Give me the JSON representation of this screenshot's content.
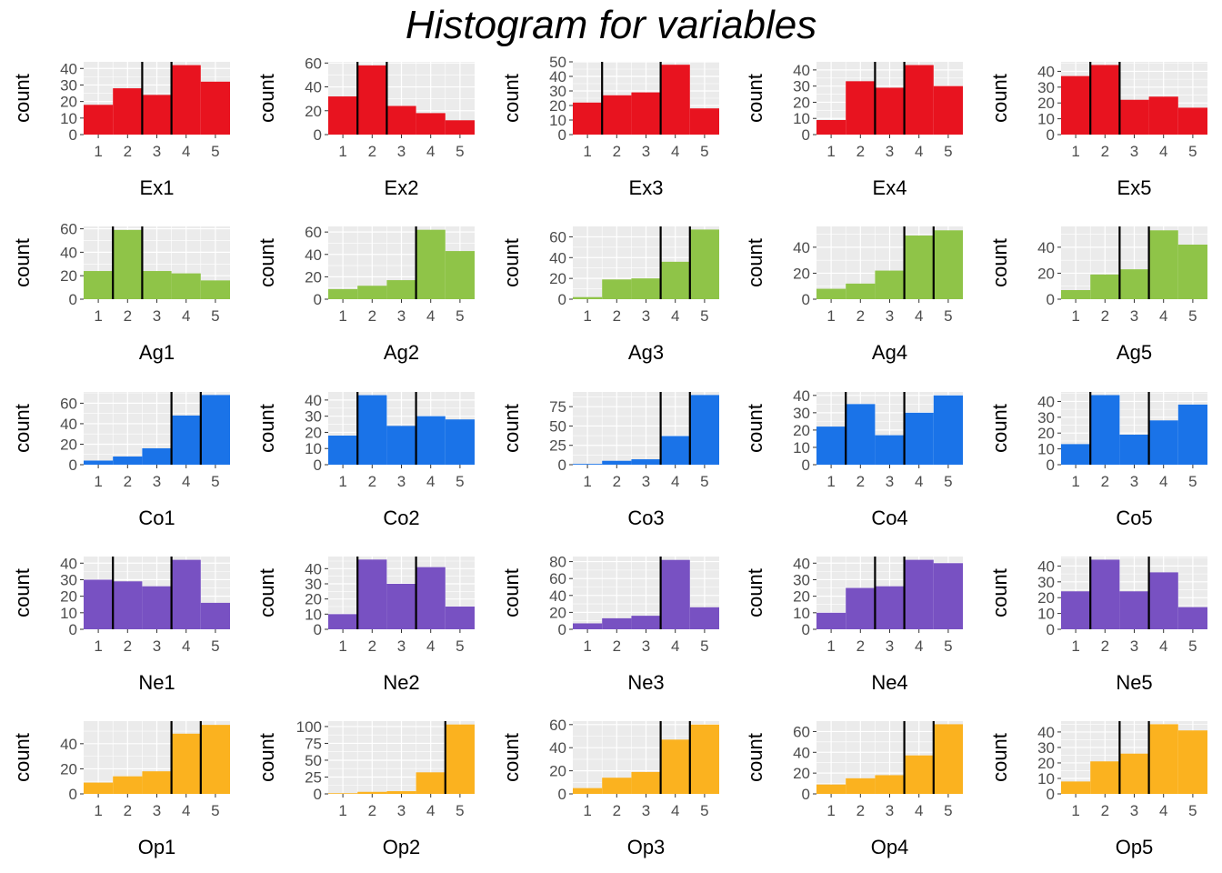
{
  "title": "Histogram for variables",
  "ylabel": "count",
  "colors": {
    "Ex": "#e8131f",
    "Ag": "#8fc448",
    "Co": "#1a73e8",
    "Ne": "#7851c2",
    "Op": "#fbb21f",
    "panel_bg": "#ebebeb",
    "grid": "#ffffff",
    "line": "#000000"
  },
  "chart_data": [
    {
      "type": "bar",
      "title": "",
      "xlabel": "Ex1",
      "ylabel": "count",
      "categories": [
        "1",
        "2",
        "3",
        "4",
        "5"
      ],
      "values": [
        18,
        28,
        24,
        42,
        32
      ],
      "ylim": [
        0,
        44
      ],
      "yticks": [
        0,
        10,
        20,
        30,
        40
      ],
      "vlines": [
        2.5,
        3.5
      ],
      "color": "#e8131f"
    },
    {
      "type": "bar",
      "title": "",
      "xlabel": "Ex2",
      "ylabel": "count",
      "categories": [
        "1",
        "2",
        "3",
        "4",
        "5"
      ],
      "values": [
        32,
        58,
        24,
        18,
        12
      ],
      "ylim": [
        0,
        61
      ],
      "yticks": [
        0,
        20,
        40,
        60
      ],
      "vlines": [
        1.5,
        2.5
      ],
      "color": "#e8131f"
    },
    {
      "type": "bar",
      "title": "",
      "xlabel": "Ex3",
      "ylabel": "count",
      "categories": [
        "1",
        "2",
        "3",
        "4",
        "5"
      ],
      "values": [
        22,
        27,
        29,
        48,
        18
      ],
      "ylim": [
        0,
        50
      ],
      "yticks": [
        0,
        10,
        20,
        30,
        40,
        50
      ],
      "vlines": [
        1.5,
        3.5
      ],
      "color": "#e8131f"
    },
    {
      "type": "bar",
      "title": "",
      "xlabel": "Ex4",
      "ylabel": "count",
      "categories": [
        "1",
        "2",
        "3",
        "4",
        "5"
      ],
      "values": [
        9,
        33,
        29,
        43,
        30
      ],
      "ylim": [
        0,
        45
      ],
      "yticks": [
        0,
        10,
        20,
        30,
        40
      ],
      "vlines": [
        2.5,
        3.5
      ],
      "color": "#e8131f"
    },
    {
      "type": "bar",
      "title": "",
      "xlabel": "Ex5",
      "ylabel": "count",
      "categories": [
        "1",
        "2",
        "3",
        "4",
        "5"
      ],
      "values": [
        37,
        44,
        22,
        24,
        17
      ],
      "ylim": [
        0,
        46
      ],
      "yticks": [
        0,
        10,
        20,
        30,
        40
      ],
      "vlines": [
        1.5,
        2.5
      ],
      "color": "#e8131f"
    },
    {
      "type": "bar",
      "title": "",
      "xlabel": "Ag1",
      "ylabel": "count",
      "categories": [
        "1",
        "2",
        "3",
        "4",
        "5"
      ],
      "values": [
        24,
        59,
        24,
        22,
        16
      ],
      "ylim": [
        0,
        62
      ],
      "yticks": [
        0,
        20,
        40,
        60
      ],
      "vlines": [
        1.5,
        2.5
      ],
      "color": "#8fc448"
    },
    {
      "type": "bar",
      "title": "",
      "xlabel": "Ag2",
      "ylabel": "count",
      "categories": [
        "1",
        "2",
        "3",
        "4",
        "5"
      ],
      "values": [
        9,
        12,
        17,
        62,
        43
      ],
      "ylim": [
        0,
        65
      ],
      "yticks": [
        0,
        20,
        40,
        60
      ],
      "vlines": [
        3.5
      ],
      "color": "#8fc448"
    },
    {
      "type": "bar",
      "title": "",
      "xlabel": "Ag3",
      "ylabel": "count",
      "categories": [
        "1",
        "2",
        "3",
        "4",
        "5"
      ],
      "values": [
        2,
        19,
        20,
        36,
        67
      ],
      "ylim": [
        0,
        70
      ],
      "yticks": [
        0,
        20,
        40,
        60
      ],
      "vlines": [
        3.5,
        4.5
      ],
      "color": "#8fc448"
    },
    {
      "type": "bar",
      "title": "",
      "xlabel": "Ag4",
      "ylabel": "count",
      "categories": [
        "1",
        "2",
        "3",
        "4",
        "5"
      ],
      "values": [
        8,
        12,
        22,
        49,
        53
      ],
      "ylim": [
        0,
        56
      ],
      "yticks": [
        0,
        20,
        40
      ],
      "vlines": [
        3.5,
        4.5
      ],
      "color": "#8fc448"
    },
    {
      "type": "bar",
      "title": "",
      "xlabel": "Ag5",
      "ylabel": "count",
      "categories": [
        "1",
        "2",
        "3",
        "4",
        "5"
      ],
      "values": [
        7,
        19,
        23,
        53,
        42
      ],
      "ylim": [
        0,
        56
      ],
      "yticks": [
        0,
        20,
        40
      ],
      "vlines": [
        2.5,
        3.5
      ],
      "color": "#8fc448"
    },
    {
      "type": "bar",
      "title": "",
      "xlabel": "Co1",
      "ylabel": "count",
      "categories": [
        "1",
        "2",
        "3",
        "4",
        "5"
      ],
      "values": [
        4,
        8,
        16,
        48,
        68
      ],
      "ylim": [
        0,
        71
      ],
      "yticks": [
        0,
        20,
        40,
        60
      ],
      "vlines": [
        3.5,
        4.5
      ],
      "color": "#1a73e8"
    },
    {
      "type": "bar",
      "title": "",
      "xlabel": "Co2",
      "ylabel": "count",
      "categories": [
        "1",
        "2",
        "3",
        "4",
        "5"
      ],
      "values": [
        18,
        43,
        24,
        30,
        28
      ],
      "ylim": [
        0,
        45
      ],
      "yticks": [
        0,
        10,
        20,
        30,
        40
      ],
      "vlines": [
        1.5,
        3.5
      ],
      "color": "#1a73e8"
    },
    {
      "type": "bar",
      "title": "",
      "xlabel": "Co3",
      "ylabel": "count",
      "categories": [
        "1",
        "2",
        "3",
        "4",
        "5"
      ],
      "values": [
        1,
        5,
        7,
        37,
        90
      ],
      "ylim": [
        0,
        94
      ],
      "yticks": [
        0,
        25,
        50,
        75
      ],
      "vlines": [
        3.5,
        4.5
      ],
      "color": "#1a73e8"
    },
    {
      "type": "bar",
      "title": "",
      "xlabel": "Co4",
      "ylabel": "count",
      "categories": [
        "1",
        "2",
        "3",
        "4",
        "5"
      ],
      "values": [
        22,
        35,
        17,
        30,
        40
      ],
      "ylim": [
        0,
        42
      ],
      "yticks": [
        0,
        10,
        20,
        30,
        40
      ],
      "vlines": [
        1.5,
        3.5
      ],
      "color": "#1a73e8"
    },
    {
      "type": "bar",
      "title": "",
      "xlabel": "Co5",
      "ylabel": "count",
      "categories": [
        "1",
        "2",
        "3",
        "4",
        "5"
      ],
      "values": [
        13,
        44,
        19,
        28,
        38
      ],
      "ylim": [
        0,
        46
      ],
      "yticks": [
        0,
        10,
        20,
        30,
        40
      ],
      "vlines": [
        1.5,
        3.5
      ],
      "color": "#1a73e8"
    },
    {
      "type": "bar",
      "title": "",
      "xlabel": "Ne1",
      "ylabel": "count",
      "categories": [
        "1",
        "2",
        "3",
        "4",
        "5"
      ],
      "values": [
        30,
        29,
        26,
        42,
        16
      ],
      "ylim": [
        0,
        44
      ],
      "yticks": [
        0,
        10,
        20,
        30,
        40
      ],
      "vlines": [
        1.5,
        3.5
      ],
      "color": "#7851c2"
    },
    {
      "type": "bar",
      "title": "",
      "xlabel": "Ne2",
      "ylabel": "count",
      "categories": [
        "1",
        "2",
        "3",
        "4",
        "5"
      ],
      "values": [
        10,
        46,
        30,
        41,
        15
      ],
      "ylim": [
        0,
        48
      ],
      "yticks": [
        0,
        10,
        20,
        30,
        40
      ],
      "vlines": [
        1.5,
        3.5
      ],
      "color": "#7851c2"
    },
    {
      "type": "bar",
      "title": "",
      "xlabel": "Ne3",
      "ylabel": "count",
      "categories": [
        "1",
        "2",
        "3",
        "4",
        "5"
      ],
      "values": [
        7,
        13,
        16,
        82,
        26
      ],
      "ylim": [
        0,
        86
      ],
      "yticks": [
        0,
        20,
        40,
        60,
        80
      ],
      "vlines": [
        3.5
      ],
      "color": "#7851c2"
    },
    {
      "type": "bar",
      "title": "",
      "xlabel": "Ne4",
      "ylabel": "count",
      "categories": [
        "1",
        "2",
        "3",
        "4",
        "5"
      ],
      "values": [
        10,
        25,
        26,
        42,
        40
      ],
      "ylim": [
        0,
        44
      ],
      "yticks": [
        0,
        10,
        20,
        30,
        40
      ],
      "vlines": [
        2.5,
        3.5
      ],
      "color": "#7851c2"
    },
    {
      "type": "bar",
      "title": "",
      "xlabel": "Ne5",
      "ylabel": "count",
      "categories": [
        "1",
        "2",
        "3",
        "4",
        "5"
      ],
      "values": [
        24,
        44,
        24,
        36,
        14
      ],
      "ylim": [
        0,
        46
      ],
      "yticks": [
        0,
        10,
        20,
        30,
        40
      ],
      "vlines": [
        1.5,
        3.5
      ],
      "color": "#7851c2"
    },
    {
      "type": "bar",
      "title": "",
      "xlabel": "Op1",
      "ylabel": "count",
      "categories": [
        "1",
        "2",
        "3",
        "4",
        "5"
      ],
      "values": [
        9,
        14,
        18,
        48,
        55
      ],
      "ylim": [
        0,
        58
      ],
      "yticks": [
        0,
        20,
        40
      ],
      "vlines": [
        3.5,
        4.5
      ],
      "color": "#fbb21f"
    },
    {
      "type": "bar",
      "title": "",
      "xlabel": "Op2",
      "ylabel": "count",
      "categories": [
        "1",
        "2",
        "3",
        "4",
        "5"
      ],
      "values": [
        1,
        3,
        4,
        32,
        103
      ],
      "ylim": [
        0,
        108
      ],
      "yticks": [
        0,
        25,
        50,
        75,
        100
      ],
      "vlines": [
        4.5
      ],
      "color": "#fbb21f"
    },
    {
      "type": "bar",
      "title": "",
      "xlabel": "Op3",
      "ylabel": "count",
      "categories": [
        "1",
        "2",
        "3",
        "4",
        "5"
      ],
      "values": [
        5,
        14,
        19,
        47,
        60
      ],
      "ylim": [
        0,
        63
      ],
      "yticks": [
        0,
        20,
        40,
        60
      ],
      "vlines": [
        3.5,
        4.5
      ],
      "color": "#fbb21f"
    },
    {
      "type": "bar",
      "title": "",
      "xlabel": "Op4",
      "ylabel": "count",
      "categories": [
        "1",
        "2",
        "3",
        "4",
        "5"
      ],
      "values": [
        9,
        15,
        18,
        37,
        67
      ],
      "ylim": [
        0,
        70
      ],
      "yticks": [
        0,
        20,
        40,
        60
      ],
      "vlines": [
        3.5,
        4.5
      ],
      "color": "#fbb21f"
    },
    {
      "type": "bar",
      "title": "",
      "xlabel": "Op5",
      "ylabel": "count",
      "categories": [
        "1",
        "2",
        "3",
        "4",
        "5"
      ],
      "values": [
        8,
        21,
        26,
        45,
        41
      ],
      "ylim": [
        0,
        47
      ],
      "yticks": [
        0,
        10,
        20,
        30,
        40
      ],
      "vlines": [
        2.5,
        3.5
      ],
      "color": "#fbb21f"
    }
  ]
}
